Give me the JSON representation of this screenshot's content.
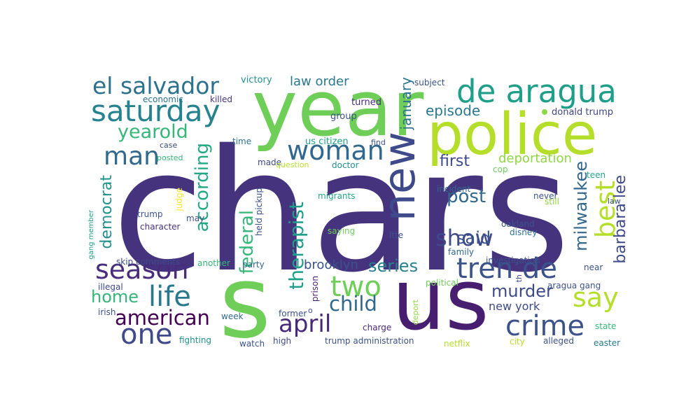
{
  "word_cloud": {
    "background": "#ffffff",
    "palette": [
      "#440154",
      "#482878",
      "#3e4a89",
      "#31688e",
      "#26828e",
      "#1f9e89",
      "#35b779",
      "#6ece58",
      "#b5de2b",
      "#fde725"
    ],
    "words": [
      {
        "text": "chars",
        "color": "#46337e"
      },
      {
        "text": "s",
        "color": "#6ece58"
      },
      {
        "text": "us",
        "color": "#481f70"
      },
      {
        "text": "year",
        "color": "#6ece58"
      },
      {
        "text": "police",
        "color": "#b5de2b"
      },
      {
        "text": "de aragua",
        "color": "#1f9e89"
      },
      {
        "text": "saturday",
        "color": "#26828e"
      },
      {
        "text": "el salvador",
        "color": "#2c728e"
      },
      {
        "text": "new",
        "color": "#3e4a89"
      },
      {
        "text": "woman",
        "color": "#31688e"
      },
      {
        "text": "man",
        "color": "#31688e"
      },
      {
        "text": "yearold",
        "color": "#35b779"
      },
      {
        "text": "tren de",
        "color": "#3b528b"
      },
      {
        "text": "crime",
        "color": "#3b528b"
      },
      {
        "text": "season",
        "color": "#472d7b"
      },
      {
        "text": "life",
        "color": "#2a788e"
      },
      {
        "text": "one",
        "color": "#3e4a89"
      },
      {
        "text": "two",
        "color": "#6ece58"
      },
      {
        "text": "april",
        "color": "#482878"
      },
      {
        "text": "say",
        "color": "#b5de2b"
      },
      {
        "text": "show",
        "color": "#3e4a89"
      },
      {
        "text": "best",
        "color": "#b5de2b"
      },
      {
        "text": "american",
        "color": "#440154"
      },
      {
        "text": "child",
        "color": "#31688e"
      },
      {
        "text": "according",
        "color": "#22a884"
      },
      {
        "text": "therapist",
        "color": "#1f9e89"
      },
      {
        "text": "federal",
        "color": "#35b779"
      },
      {
        "text": "democrat",
        "color": "#21918c"
      },
      {
        "text": "barbara lee",
        "color": "#3e4a89"
      },
      {
        "text": "milwaukee",
        "color": "#31688e"
      },
      {
        "text": "series",
        "color": "#26828e"
      },
      {
        "text": "post",
        "color": "#31688e"
      },
      {
        "text": "home",
        "color": "#35b779"
      },
      {
        "text": "murder",
        "color": "#3e4a89"
      },
      {
        "text": "said",
        "color": "#3b528b"
      },
      {
        "text": "first",
        "color": "#3e4a89"
      },
      {
        "text": "episode",
        "color": "#2a788e"
      },
      {
        "text": "january",
        "color": "#2c728e"
      },
      {
        "text": "deportation",
        "color": "#8fd744"
      },
      {
        "text": "law order",
        "color": "#2a788e"
      },
      {
        "text": "brooklyn",
        "color": "#3b528b"
      },
      {
        "text": "new york",
        "color": "#3e4a89"
      },
      {
        "text": "donald trump",
        "color": "#414487"
      },
      {
        "text": "victory",
        "color": "#21918c"
      },
      {
        "text": "turned",
        "color": "#472d7b"
      },
      {
        "text": "group",
        "color": "#3b528b"
      },
      {
        "text": "us citizen",
        "color": "#1f9e89"
      },
      {
        "text": "find",
        "color": "#3b528b"
      },
      {
        "text": "doctor",
        "color": "#21918c"
      },
      {
        "text": "time",
        "color": "#2c728e"
      },
      {
        "text": "made",
        "color": "#3e4a89"
      },
      {
        "text": "question",
        "color": "#b5de2b"
      },
      {
        "text": "migrants",
        "color": "#22a884"
      },
      {
        "text": "held pickup",
        "color": "#3b528b"
      },
      {
        "text": "judge",
        "color": "#fde725"
      },
      {
        "text": "trump",
        "color": "#3b528b"
      },
      {
        "text": "may",
        "color": "#3b528b"
      },
      {
        "text": "character",
        "color": "#46337e"
      },
      {
        "text": "saying",
        "color": "#6ece58"
      },
      {
        "text": "skip comments",
        "color": "#3e4a89"
      },
      {
        "text": "another",
        "color": "#35b779"
      },
      {
        "text": "party",
        "color": "#31688e"
      },
      {
        "text": "investigation",
        "color": "#3b528b"
      },
      {
        "text": "prison",
        "color": "#481f70"
      },
      {
        "text": "political",
        "color": "#6ece58"
      },
      {
        "text": "illegal",
        "color": "#3e4a89"
      },
      {
        "text": "irish",
        "color": "#3b528b"
      },
      {
        "text": "week",
        "color": "#31688e"
      },
      {
        "text": "former",
        "color": "#3b528b"
      },
      {
        "text": "charge",
        "color": "#482878"
      },
      {
        "text": "deport",
        "color": "#8fd744"
      },
      {
        "text": "fighting",
        "color": "#21918c"
      },
      {
        "text": "watch",
        "color": "#3b528b"
      },
      {
        "text": "high",
        "color": "#3e4a89"
      },
      {
        "text": "trump administration",
        "color": "#3b528b"
      },
      {
        "text": "netflix",
        "color": "#b5de2b"
      },
      {
        "text": "city",
        "color": "#b5de2b"
      },
      {
        "text": "alleged",
        "color": "#3b528b"
      },
      {
        "text": "easter",
        "color": "#2a788e"
      },
      {
        "text": "state",
        "color": "#35b779"
      },
      {
        "text": "aragua gang",
        "color": "#3b528b"
      },
      {
        "text": "near",
        "color": "#3b528b"
      },
      {
        "text": "th",
        "color": "#3e4a89"
      },
      {
        "text": "incident",
        "color": "#31688e"
      },
      {
        "text": "never",
        "color": "#3b528b"
      },
      {
        "text": "still",
        "color": "#8fd744"
      },
      {
        "text": "oakland",
        "color": "#3b528b"
      },
      {
        "text": "disney",
        "color": "#2c728e"
      },
      {
        "text": "family",
        "color": "#31688e"
      },
      {
        "text": "ltte",
        "color": "#3b528b"
      },
      {
        "text": "law",
        "color": "#3b528b"
      },
      {
        "text": "teen",
        "color": "#22a884"
      },
      {
        "text": "cop",
        "color": "#6ece58"
      },
      {
        "text": "subject",
        "color": "#3b528b"
      },
      {
        "text": "economic",
        "color": "#2c728e"
      },
      {
        "text": "killed",
        "color": "#46337e"
      },
      {
        "text": "case",
        "color": "#3e4a89"
      },
      {
        "text": "posted",
        "color": "#35b779"
      },
      {
        "text": "gang member",
        "color": "#1f9e89"
      },
      {
        "text": "o",
        "color": "#3b528b"
      }
    ]
  }
}
